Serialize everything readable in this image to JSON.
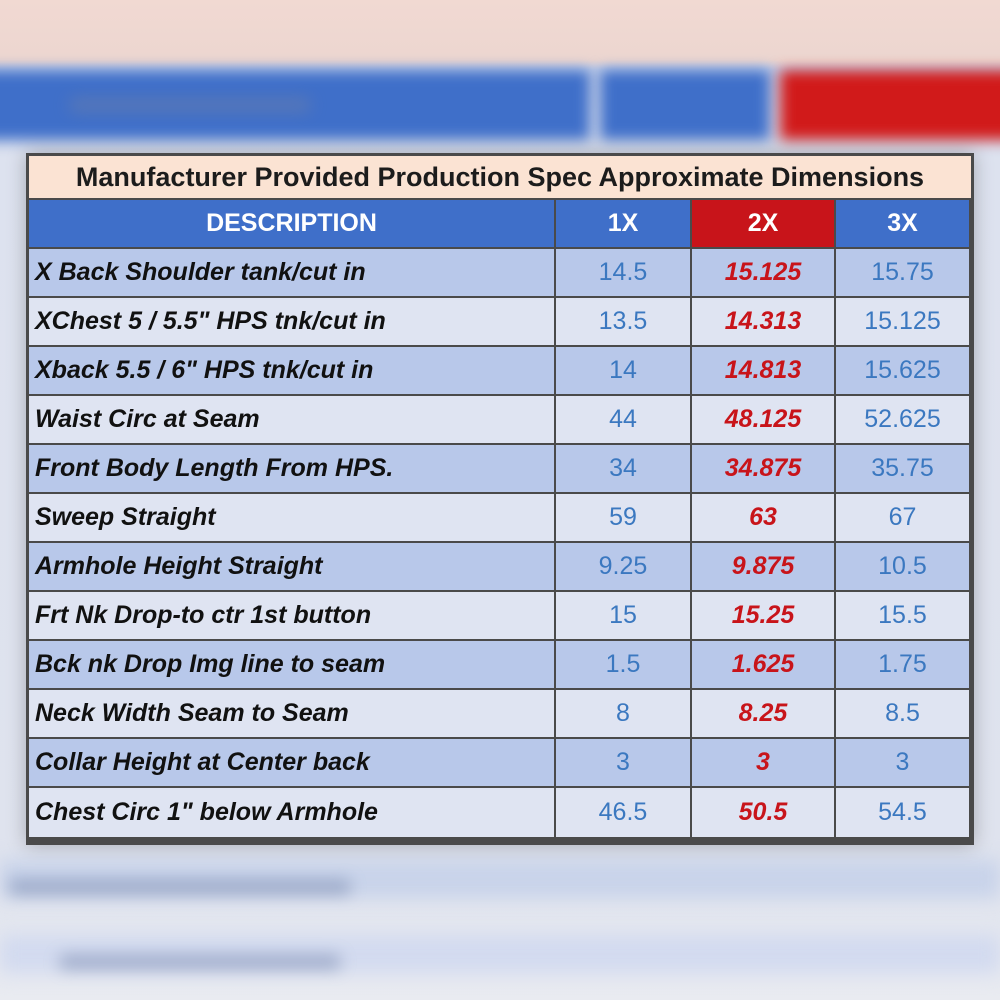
{
  "table": {
    "title": "Manufacturer Provided Production Spec Approximate Dimensions",
    "headers": [
      "DESCRIPTION",
      "1X",
      "2X",
      "3X"
    ],
    "highlight_column": "2X",
    "colors": {
      "header_blue": "#3f6fc9",
      "header_red": "#c8141a",
      "value_blue": "#3b78c0",
      "value_red": "#c8141a",
      "title_bg": "#fbe3d3"
    },
    "rows": [
      {
        "description": "X Back Shoulder tank/cut in",
        "x1": "14.5",
        "x2": "15.125",
        "x3": "15.75"
      },
      {
        "description": "XChest 5 / 5.5\" HPS tnk/cut in",
        "x1": "13.5",
        "x2": "14.313",
        "x3": "15.125"
      },
      {
        "description": "Xback 5.5 / 6\" HPS tnk/cut in",
        "x1": "14",
        "x2": "14.813",
        "x3": "15.625"
      },
      {
        "description": "Waist Circ at Seam",
        "x1": "44",
        "x2": "48.125",
        "x3": "52.625"
      },
      {
        "description": "Front Body Length From HPS.",
        "x1": "34",
        "x2": "34.875",
        "x3": "35.75"
      },
      {
        "description": "Sweep Straight",
        "x1": "59",
        "x2": "63",
        "x3": "67"
      },
      {
        "description": "Armhole Height Straight",
        "x1": "9.25",
        "x2": "9.875",
        "x3": "10.5"
      },
      {
        "description": "Frt Nk Drop-to ctr 1st button",
        "x1": "15",
        "x2": "15.25",
        "x3": "15.5"
      },
      {
        "description": "Bck nk Drop Img line to seam",
        "x1": "1.5",
        "x2": "1.625",
        "x3": "1.75"
      },
      {
        "description": "Neck Width Seam to Seam",
        "x1": "8",
        "x2": "8.25",
        "x3": "8.5"
      },
      {
        "description": "Collar Height at Center back",
        "x1": "3",
        "x2": "3",
        "x3": "3"
      },
      {
        "description": "Chest Circ 1\" below Armhole",
        "x1": "46.5",
        "x2": "50.5",
        "x3": "54.5"
      }
    ]
  }
}
